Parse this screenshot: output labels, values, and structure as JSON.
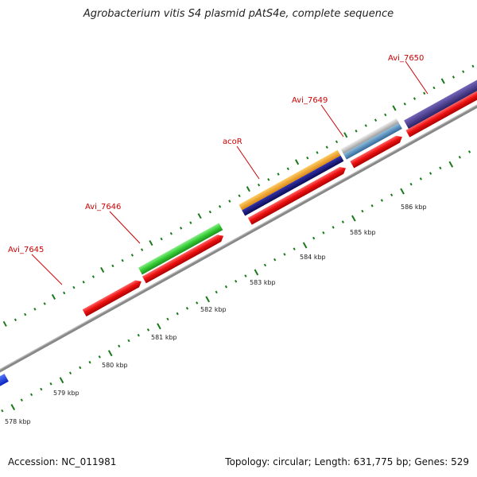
{
  "title": "Agrobacterium vitis S4 plasmid pAtS4e, complete sequence",
  "footer": {
    "accession": "Accession: NC_011981",
    "summary": "Topology: circular; Length: 631,775 bp; Genes: 529"
  },
  "scale_labels": [
    "578 kbp",
    "579 kbp",
    "580 kbp",
    "581 kbp",
    "582 kbp",
    "583 kbp",
    "584 kbp",
    "585 kbp",
    "586 kbp"
  ],
  "gene_labels": [
    "Avi_7645",
    "Avi_7646",
    "acoR",
    "Avi_7649",
    "Avi_7650"
  ],
  "colors": {
    "cds": "#ee1111",
    "backbone": "#888888",
    "tick": "#1a7a1a",
    "label": "#cc0000",
    "green_feature": "#33cc33",
    "orange_feature": "#ee9922",
    "navy_feature": "#111177",
    "silver_feature": "#bbbbbb",
    "steel_feature": "#4488bb",
    "purple_feature": "#443388",
    "blue_feature": "#1133ee"
  }
}
